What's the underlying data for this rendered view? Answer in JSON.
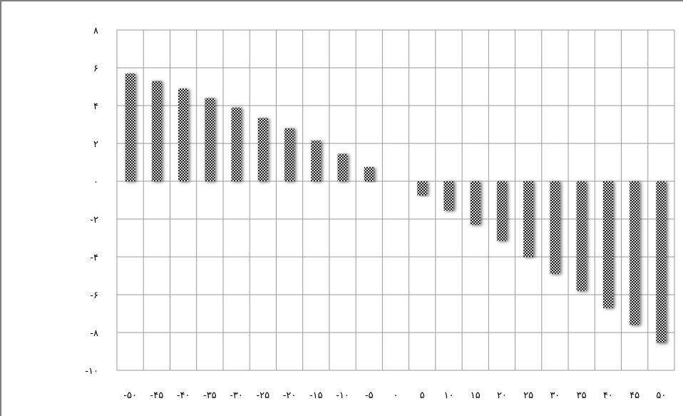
{
  "chart_data": {
    "type": "bar",
    "title": "",
    "xlabel": "",
    "ylabel": "",
    "categories": [
      -50,
      -45,
      -40,
      -35,
      -30,
      -25,
      -20,
      -15,
      -10,
      -5,
      0,
      5,
      10,
      15,
      20,
      25,
      30,
      35,
      40,
      45,
      50
    ],
    "category_labels": [
      "-۵۰",
      "-۴۵",
      "-۴۰",
      "-۳۵",
      "-۳۰",
      "-۲۵",
      "-۲۰",
      "-۱۵",
      "-۱۰",
      "-۵",
      "۰",
      "۵",
      "۱۰",
      "۱۵",
      "۲۰",
      "۲۵",
      "۳۰",
      "۳۵",
      "۴۰",
      "۴۵",
      "۵۰"
    ],
    "values": [
      5.7,
      5.3,
      4.9,
      4.4,
      3.9,
      3.35,
      2.8,
      2.15,
      1.45,
      0.75,
      0,
      -0.75,
      -1.55,
      -2.3,
      -3.15,
      -4.0,
      -4.9,
      -5.8,
      -6.7,
      -7.6,
      -8.55
    ],
    "ylim": [
      -10,
      8
    ],
    "yticks": [
      -10,
      -8,
      -6,
      -4,
      -2,
      0,
      2,
      4,
      6,
      8
    ],
    "ytick_labels": [
      "-۱۰",
      "-۸",
      "-۶",
      "-۴",
      "-۲",
      "۰",
      "۲",
      "۴",
      "۶",
      "۸"
    ],
    "grid": true,
    "bar_pattern": "checkered",
    "colors": {
      "bar_dark": "#1a1a1a",
      "bar_light": "#d9d9d9",
      "grid": "#9a9a9a",
      "frame": "#7f7f7f"
    }
  }
}
